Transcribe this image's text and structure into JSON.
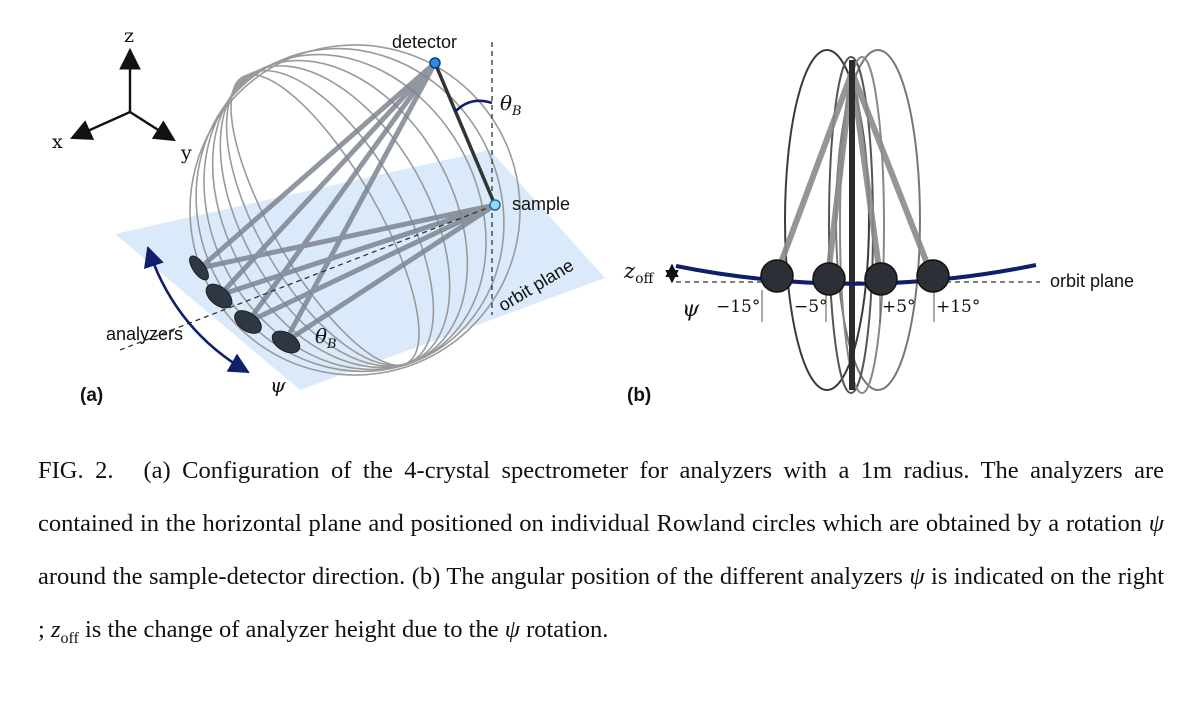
{
  "figure": {
    "panel_a": {
      "letter": "(a)",
      "axes": {
        "z": "z",
        "x": "x",
        "y": "y"
      },
      "detector": "detector",
      "sample": "sample",
      "theta_b": "θ",
      "theta_b_sub": "B",
      "orbit_plane": "orbit plane",
      "analyzers": "analyzers",
      "psi": "ψ"
    },
    "panel_b": {
      "letter": "(b)",
      "z_off": "z",
      "z_off_sub": "off",
      "orbit_plane": "orbit plane",
      "psi": "ψ",
      "angles": [
        "−15°",
        "−5°",
        "+5°",
        "+15°"
      ]
    }
  },
  "caption": {
    "label": "FIG. 2.",
    "seg1": "(a) Configuration of the 4-crystal spectrometer for analyzers with a 1m radius. The analyzers are contained in the horizontal plane and positioned on individual Rowland circles which are obtained by a rotation ",
    "psi1": "ψ",
    "seg2": " around the sample-detector direction. (b) The angular position of the different analyzers ",
    "psi2": "ψ",
    "seg3": " is indicated on the right ; ",
    "zoff_z": "z",
    "zoff_sub": "off",
    "seg4": " is the change of analyzer height due to the ",
    "psi3": "ψ",
    "seg5": " rotation."
  }
}
